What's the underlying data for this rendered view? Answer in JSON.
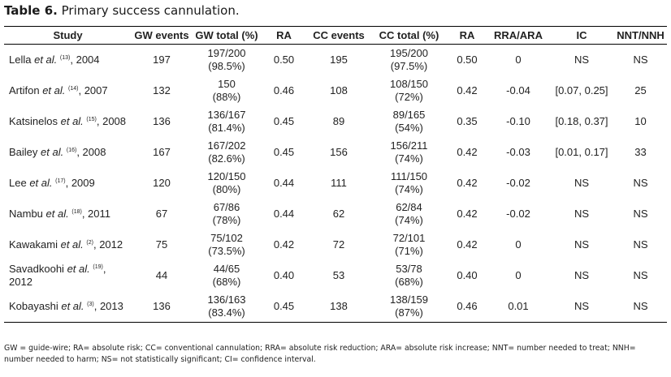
{
  "caption": {
    "label": "Table 6.",
    "title": "Primary success cannulation."
  },
  "headers": [
    "Study",
    "GW events",
    "GW total (%)",
    "RA",
    "CC events",
    "CC total (%)",
    "RA",
    "RRA/ARA",
    "IC",
    "NNT/NNH"
  ],
  "rows": [
    {
      "author": "Lella",
      "ref": "(13)",
      "year": ", 2004",
      "gw_events": "197",
      "gw_total_1": "197/200",
      "gw_total_2": "(98.5%)",
      "ra1": "0.50",
      "cc_events": "195",
      "cc_total_1": "195/200",
      "cc_total_2": "(97.5%)",
      "ra2": "0.50",
      "rra": "0",
      "ic": "NS",
      "nnt": "NS"
    },
    {
      "author": "Artifon",
      "ref": "(14)",
      "year": ", 2007",
      "gw_events": "132",
      "gw_total_1": "150",
      "gw_total_2": "(88%)",
      "ra1": "0.46",
      "cc_events": "108",
      "cc_total_1": "108/150",
      "cc_total_2": "(72%)",
      "ra2": "0.42",
      "rra": "-0.04",
      "ic": "[0.07, 0.25]",
      "nnt": "25"
    },
    {
      "author": "Katsinelos",
      "ref": "(15)",
      "year": ", 2008",
      "gw_events": "136",
      "gw_total_1": "136/167",
      "gw_total_2": "(81.4%)",
      "ra1": "0.45",
      "cc_events": "89",
      "cc_total_1": "89/165",
      "cc_total_2": "(54%)",
      "ra2": "0.35",
      "rra": "-0.10",
      "ic": "[0.18, 0.37]",
      "nnt": "10"
    },
    {
      "author": "Bailey",
      "ref": "(16)",
      "year": ", 2008",
      "gw_events": "167",
      "gw_total_1": "167/202",
      "gw_total_2": "(82.6%)",
      "ra1": "0.45",
      "cc_events": "156",
      "cc_total_1": "156/211",
      "cc_total_2": "(74%)",
      "ra2": "0.42",
      "rra": "-0.03",
      "ic": "[0.01, 0.17]",
      "nnt": "33"
    },
    {
      "author": "Lee",
      "ref": "(17)",
      "year": ", 2009",
      "gw_events": "120",
      "gw_total_1": "120/150",
      "gw_total_2": "(80%)",
      "ra1": "0.44",
      "cc_events": "111",
      "cc_total_1": "111/150",
      "cc_total_2": "(74%)",
      "ra2": "0.42",
      "rra": "-0.02",
      "ic": "NS",
      "nnt": "NS"
    },
    {
      "author": "Nambu",
      "ref": "(18)",
      "year": ", 2011",
      "gw_events": "67",
      "gw_total_1": "67/86",
      "gw_total_2": "(78%)",
      "ra1": "0.44",
      "cc_events": "62",
      "cc_total_1": "62/84",
      "cc_total_2": "(74%)",
      "ra2": "0.42",
      "rra": "-0.02",
      "ic": "NS",
      "nnt": "NS"
    },
    {
      "author": "Kawakami",
      "ref": "(2)",
      "year": ", 2012",
      "gw_events": "75",
      "gw_total_1": "75/102",
      "gw_total_2": "(73.5%)",
      "ra1": "0.42",
      "cc_events": "72",
      "cc_total_1": "72/101",
      "cc_total_2": "(71%)",
      "ra2": "0.42",
      "rra": "0",
      "ic": "NS",
      "nnt": "NS"
    },
    {
      "author": "Savadkoohi",
      "ref": "(19)",
      "year": ", 2012",
      "gw_events": "44",
      "gw_total_1": "44/65",
      "gw_total_2": "(68%)",
      "ra1": "0.40",
      "cc_events": "53",
      "cc_total_1": "53/78",
      "cc_total_2": "(68%)",
      "ra2": "0.40",
      "rra": "0",
      "ic": "NS",
      "nnt": "NS"
    },
    {
      "author": "Kobayashi",
      "ref": "(3)",
      "year": ", 2013",
      "gw_events": "136",
      "gw_total_1": "136/163",
      "gw_total_2": "(83.4%)",
      "ra1": "0.45",
      "cc_events": "138",
      "cc_total_1": "138/159",
      "cc_total_2": "(87%)",
      "ra2": "0.46",
      "rra": "0.01",
      "ic": "NS",
      "nnt": "NS"
    }
  ],
  "et_al": "et al.",
  "footnote": "GW = guide-wire; RA= absolute risk; CC= conventional cannulation; RRA= absolute risk reduction; ARA= absolute risk increase; NNT= number needed to treat; NNH= number needed to harm; NS= not statistically significant; CI= confidence interval."
}
